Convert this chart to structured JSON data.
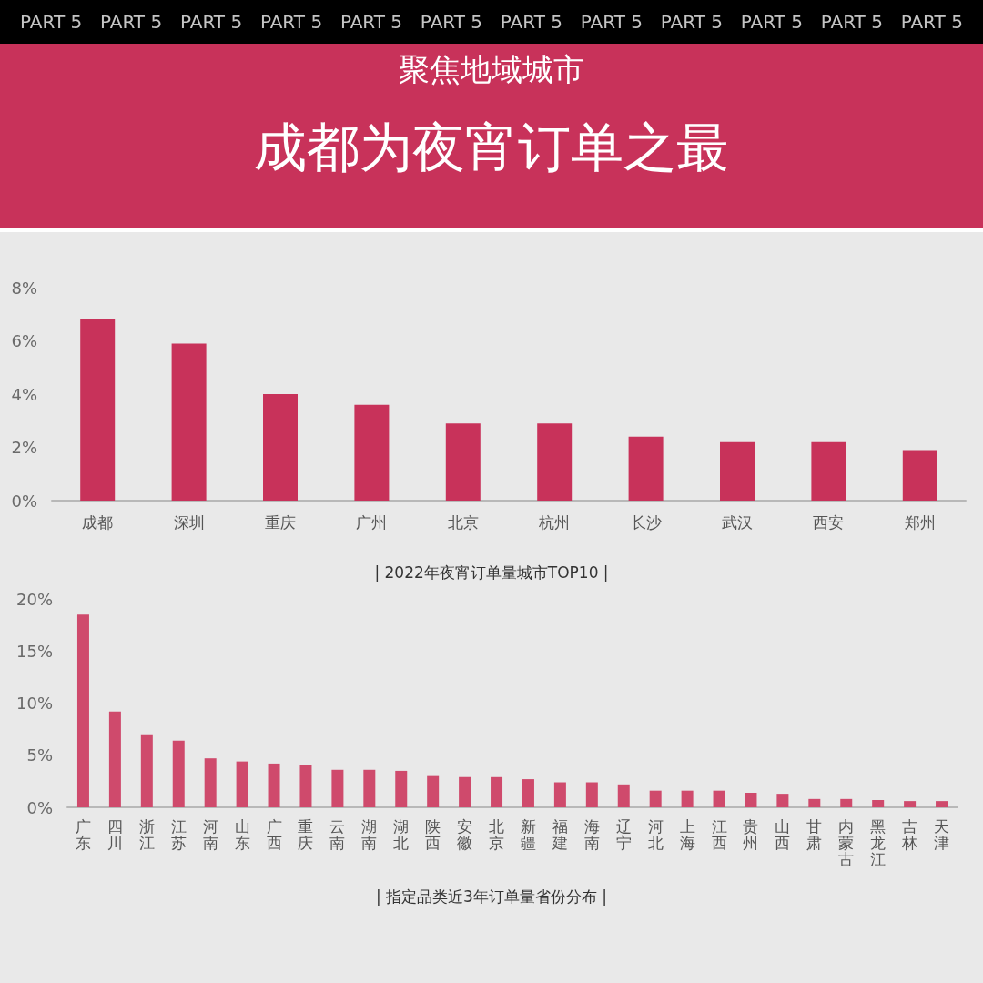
{
  "chart_data": [
    {
      "type": "other",
      "title": "聚焦地域城市",
      "subtitle": "成都为夜宵订单之最",
      "annotations": [
        "PART 5",
        "PART 5",
        "PART 5",
        "PART 5",
        "PART 5",
        "PART 5",
        "PART 5",
        "PART 5",
        "PART 5",
        "PART 5",
        "PART 5",
        "PART 5"
      ]
    },
    {
      "type": "bar",
      "title": "| 2022年夜宵订单量城市TOP10 |",
      "categories": [
        "成都",
        "深圳",
        "重庆",
        "广州",
        "北京",
        "杭州",
        "长沙",
        "武汉",
        "西安",
        "郑州"
      ],
      "values": [
        6.8,
        5.9,
        4.0,
        3.6,
        2.9,
        2.9,
        2.4,
        2.2,
        2.2,
        1.9
      ],
      "color": "#c8325a",
      "ylim": [
        0,
        8
      ],
      "yticks": [
        {
          "value": 0,
          "label": "0%"
        },
        {
          "value": 2,
          "label": "2%"
        },
        {
          "value": 4,
          "label": "4%"
        },
        {
          "value": 6,
          "label": "6%"
        },
        {
          "value": 8,
          "label": "8%"
        }
      ]
    },
    {
      "type": "bar",
      "title": "| 指定品类近3年订单量省份分布 |",
      "categories": [
        "广东",
        "四川",
        "浙江",
        "江苏",
        "河南",
        "山东",
        "广西",
        "重庆",
        "云南",
        "湖南",
        "湖北",
        "陕西",
        "安徽",
        "北京",
        "新疆",
        "福建",
        "海南",
        "辽宁",
        "河北",
        "上海",
        "江西",
        "贵州",
        "山西",
        "甘肃",
        "内蒙古",
        "黑龙江",
        "吉林",
        "天津"
      ],
      "values": [
        18.5,
        9.2,
        7.0,
        6.4,
        4.7,
        4.4,
        4.2,
        4.1,
        3.6,
        3.6,
        3.5,
        3.0,
        2.9,
        2.9,
        2.7,
        2.4,
        2.4,
        2.2,
        1.6,
        1.6,
        1.6,
        1.4,
        1.3,
        0.8,
        0.8,
        0.7,
        0.6,
        0.6
      ],
      "color": "#cf4a6c",
      "ylim": [
        0,
        20
      ],
      "yticks": [
        {
          "value": 0,
          "label": "0%"
        },
        {
          "value": 5,
          "label": "5%"
        },
        {
          "value": 10,
          "label": "10%"
        },
        {
          "value": 15,
          "label": "15%"
        },
        {
          "value": 20,
          "label": "20%"
        }
      ]
    }
  ]
}
